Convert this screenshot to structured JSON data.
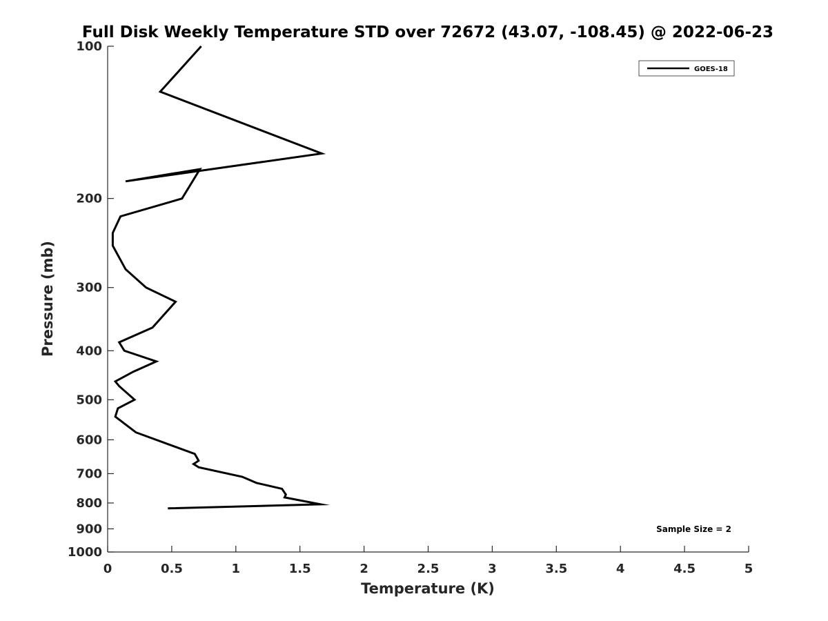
{
  "chart_data": {
    "type": "line",
    "title": "Full Disk Weekly Temperature STD over 72672 (43.07, -108.45) @ 2022-06-23",
    "xlabel": "Temperature (K)",
    "ylabel": "Pressure (mb)",
    "xlim": [
      0,
      5
    ],
    "ylim": [
      1000,
      100
    ],
    "yscale": "log",
    "y_reversed": true,
    "grid": false,
    "legend_position": "top-right",
    "xticks": [
      0,
      0.5,
      1,
      1.5,
      2,
      2.5,
      3,
      3.5,
      4,
      4.5,
      5
    ],
    "xtick_labels": [
      "0",
      "0.5",
      "1",
      "1.5",
      "2",
      "2.5",
      "3",
      "3.5",
      "4",
      "4.5",
      "5"
    ],
    "yticks": [
      100,
      200,
      300,
      400,
      500,
      600,
      700,
      800,
      900,
      1000
    ],
    "ytick_labels": [
      "100",
      "200",
      "300",
      "400",
      "500",
      "600",
      "700",
      "800",
      "900",
      "1000"
    ],
    "series": [
      {
        "name": "GOES-18",
        "color": "#000000",
        "x": [
          0.73,
          0.41,
          1.67,
          0.14,
          0.72,
          0.58,
          0.1,
          0.04,
          0.04,
          0.14,
          0.3,
          0.53,
          0.35,
          0.09,
          0.13,
          0.38,
          0.2,
          0.06,
          0.09,
          0.21,
          0.08,
          0.06,
          0.22,
          0.68,
          0.71,
          0.67,
          0.71,
          1.05,
          1.16,
          1.36,
          1.39,
          1.38,
          1.66,
          0.47
        ],
        "y": [
          100,
          123,
          163,
          185,
          175,
          200,
          217,
          234,
          248,
          276,
          300,
          320,
          360,
          385,
          400,
          420,
          440,
          460,
          470,
          500,
          520,
          540,
          580,
          640,
          660,
          670,
          680,
          710,
          730,
          750,
          770,
          780,
          805,
          820
        ]
      }
    ],
    "annotations": [
      {
        "text": "Sample Size = 2",
        "position": "bottom-right"
      }
    ]
  }
}
